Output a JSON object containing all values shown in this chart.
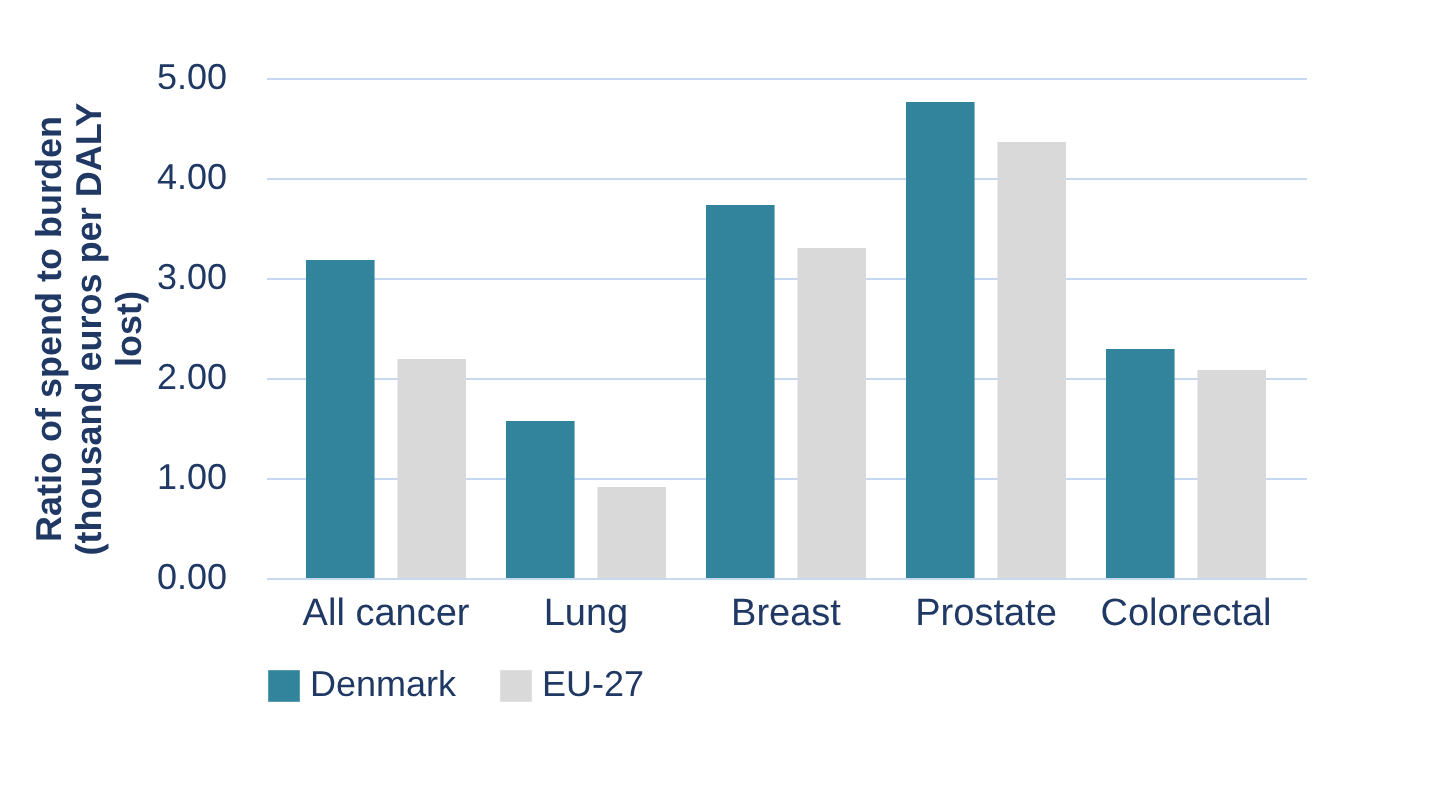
{
  "chart_data": {
    "type": "bar",
    "ylabel": "Ratio of spend to burden (thousand euros per DALY lost)",
    "categories": [
      "All cancer",
      "Lung",
      "Breast",
      "Prostate",
      "Colorectal"
    ],
    "series": [
      {
        "name": "Denmark",
        "color": "#31849b",
        "values": [
          3.18,
          1.57,
          3.73,
          4.76,
          2.29
        ]
      },
      {
        "name": "EU-27",
        "color": "#d9d9d9",
        "values": [
          2.19,
          0.91,
          3.3,
          4.36,
          2.08
        ]
      }
    ],
    "ylim": [
      0,
      5
    ],
    "yticks": [
      {
        "value": 0,
        "label": "0.00"
      },
      {
        "value": 1,
        "label": "1.00"
      },
      {
        "value": 2,
        "label": "2.00"
      },
      {
        "value": 3,
        "label": "3.00"
      },
      {
        "value": 4,
        "label": "4.00"
      },
      {
        "value": 5,
        "label": "5.00"
      }
    ],
    "grid": "y",
    "legend": "bottom"
  }
}
